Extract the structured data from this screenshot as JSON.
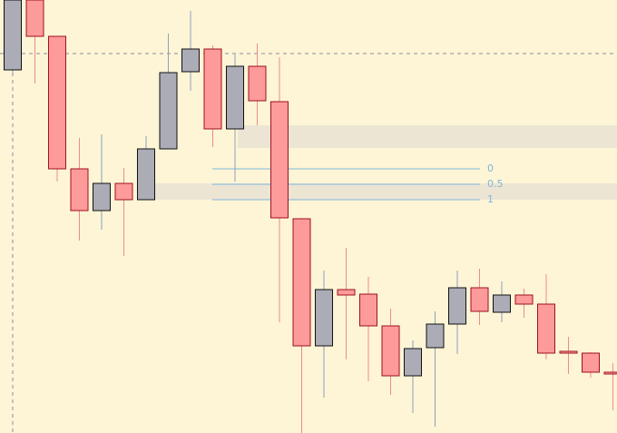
{
  "chart_data": {
    "type": "candlestick",
    "open": [
      400,
      477,
      437,
      291,
      245,
      275,
      257,
      313,
      398,
      423,
      335,
      404,
      365,
      236,
      96,
      158,
      153,
      118,
      63,
      94,
      120,
      160,
      133,
      152,
      142,
      90,
      88,
      67
    ],
    "high": [
      477,
      477,
      437,
      325,
      329,
      292,
      327,
      440,
      465,
      427,
      417,
      429,
      414,
      237,
      179,
      204,
      172,
      137,
      102,
      134,
      179,
      181,
      167,
      159,
      175,
      106,
      89,
      77
    ],
    "low": [
      397,
      385,
      277,
      212,
      224,
      195,
      257,
      313,
      377,
      315,
      277,
      339,
      122,
      0,
      39,
      81,
      57,
      42,
      22,
      7,
      87,
      119,
      122,
      127,
      81,
      65,
      61,
      25
    ],
    "close": [
      477,
      437,
      291,
      245,
      275,
      257,
      313,
      397,
      423,
      335,
      404,
      366,
      237,
      96,
      158,
      152,
      118,
      63,
      93,
      120,
      160,
      134,
      152,
      142,
      88,
      88,
      67,
      65
    ],
    "up_color": "#abacb6",
    "down_color": "#fd9a9a",
    "ylim": [
      0,
      477
    ],
    "fib": {
      "levels": [
        0,
        0.5,
        1
      ],
      "prices": [
        291,
        274,
        257
      ],
      "color": "#7fb6dc"
    }
  }
}
